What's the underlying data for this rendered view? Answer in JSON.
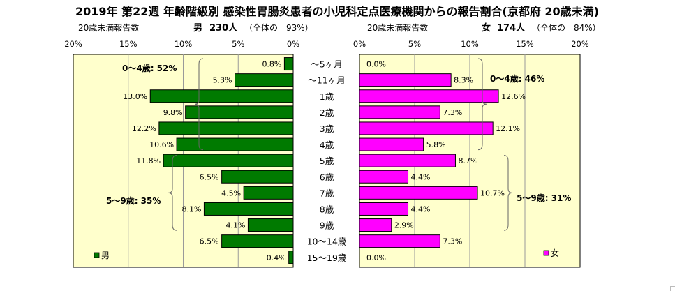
{
  "chart_data": {
    "type": "bar",
    "title": "2019年 第22週 年齢階級別 感染性胃腸炎患者の小児科定点医療機関からの報告割合(京都府 20歳未満)",
    "categories": [
      "～5ヶ月",
      "～11ヶ月",
      "1歳",
      "2歳",
      "3歳",
      "4歳",
      "5歳",
      "6歳",
      "7歳",
      "8歳",
      "9歳",
      "10～14歳",
      "15～19歳"
    ],
    "ticks": [
      "20%",
      "15%",
      "10%",
      "5%",
      "0%"
    ],
    "ticks_right": [
      "0%",
      "5%",
      "10%",
      "15%",
      "20%"
    ],
    "xlim": [
      0,
      20
    ],
    "series": [
      {
        "name": "男",
        "side": "left",
        "color": "#007a00",
        "header_label": "20歳未満報告数",
        "header_sex": "男",
        "header_count": "230人",
        "header_ratio": "（全体の　93%）",
        "values": [
          0.8,
          5.3,
          13.0,
          9.8,
          12.2,
          10.6,
          11.8,
          6.5,
          4.5,
          8.1,
          4.1,
          6.5,
          0.4
        ],
        "labels": [
          "0.8%",
          "5.3%",
          "13.0%",
          "9.8%",
          "12.2%",
          "10.6%",
          "11.8%",
          "6.5%",
          "4.5%",
          "8.1%",
          "4.1%",
          "6.5%",
          "0.4%"
        ],
        "groups": [
          "0～4歳: 52%",
          "5～9歳: 35%"
        ]
      },
      {
        "name": "女",
        "side": "right",
        "color": "#ff00ff",
        "header_label": "20歳未満報告数",
        "header_sex": "女",
        "header_count": "174人",
        "header_ratio": "（全体の　84%）",
        "values": [
          0.0,
          8.3,
          12.6,
          7.3,
          12.1,
          5.8,
          8.7,
          4.4,
          10.7,
          4.4,
          2.9,
          7.3,
          0.0
        ],
        "labels": [
          "0.0%",
          "8.3%",
          "12.6%",
          "7.3%",
          "12.1%",
          "5.8%",
          "8.7%",
          "4.4%",
          "10.7%",
          "4.4%",
          "2.9%",
          "7.3%",
          "0.0%"
        ],
        "groups": [
          "0～4歳: 46%",
          "5～9歳: 31%"
        ]
      }
    ],
    "colors": {
      "plot_background": "#ffffcc",
      "male_bar": "#007a00",
      "female_bar": "#ff00ff"
    }
  }
}
